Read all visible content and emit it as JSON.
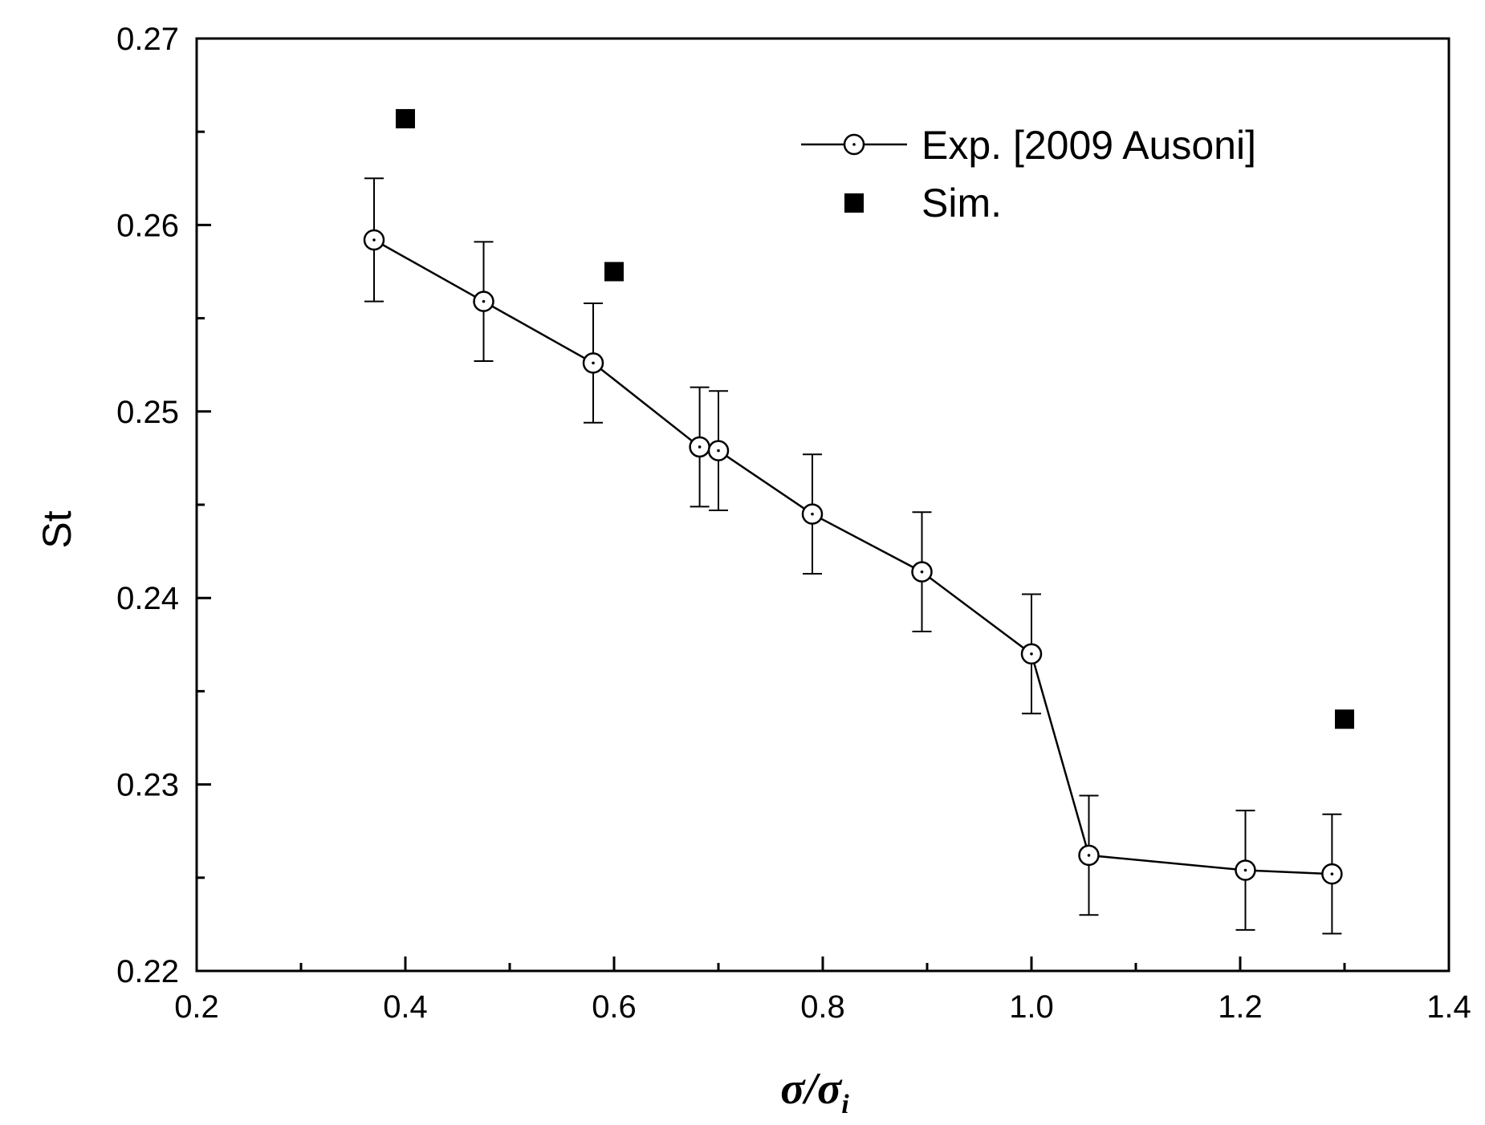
{
  "chart_data": {
    "type": "scatter",
    "xlabel": {
      "main": "σ/σ",
      "sub": "i"
    },
    "ylabel": "St",
    "xlim": [
      0.2,
      1.4
    ],
    "ylim": [
      0.22,
      0.27
    ],
    "x_ticks": [
      "0.2",
      "0.4",
      "0.6",
      "0.8",
      "1.0",
      "1.2",
      "1.4"
    ],
    "y_ticks": [
      "0.22",
      "0.23",
      "0.24",
      "0.25",
      "0.26",
      "0.27"
    ],
    "legend_position": "top-right",
    "series": [
      {
        "name": "Exp. [2009 Ausoni]",
        "marker": "open-circle-with-dot",
        "line": true,
        "color": "#000000",
        "x": [
          0.37,
          0.475,
          0.58,
          0.682,
          0.7,
          0.79,
          0.895,
          1.0,
          1.055,
          1.205,
          1.288
        ],
        "y": [
          0.2592,
          0.2559,
          0.2526,
          0.2481,
          0.2479,
          0.2445,
          0.2414,
          0.237,
          0.2262,
          0.2254,
          0.2252
        ],
        "error": [
          0.0033,
          0.0032,
          0.0032,
          0.0032,
          0.0032,
          0.0032,
          0.0032,
          0.0032,
          0.0032,
          0.0032,
          0.0032
        ]
      },
      {
        "name": "Sim.",
        "marker": "filled-square",
        "line": false,
        "color": "#000000",
        "x": [
          0.4,
          0.6,
          1.3
        ],
        "y": [
          0.2657,
          0.2575,
          0.2335
        ]
      }
    ]
  }
}
